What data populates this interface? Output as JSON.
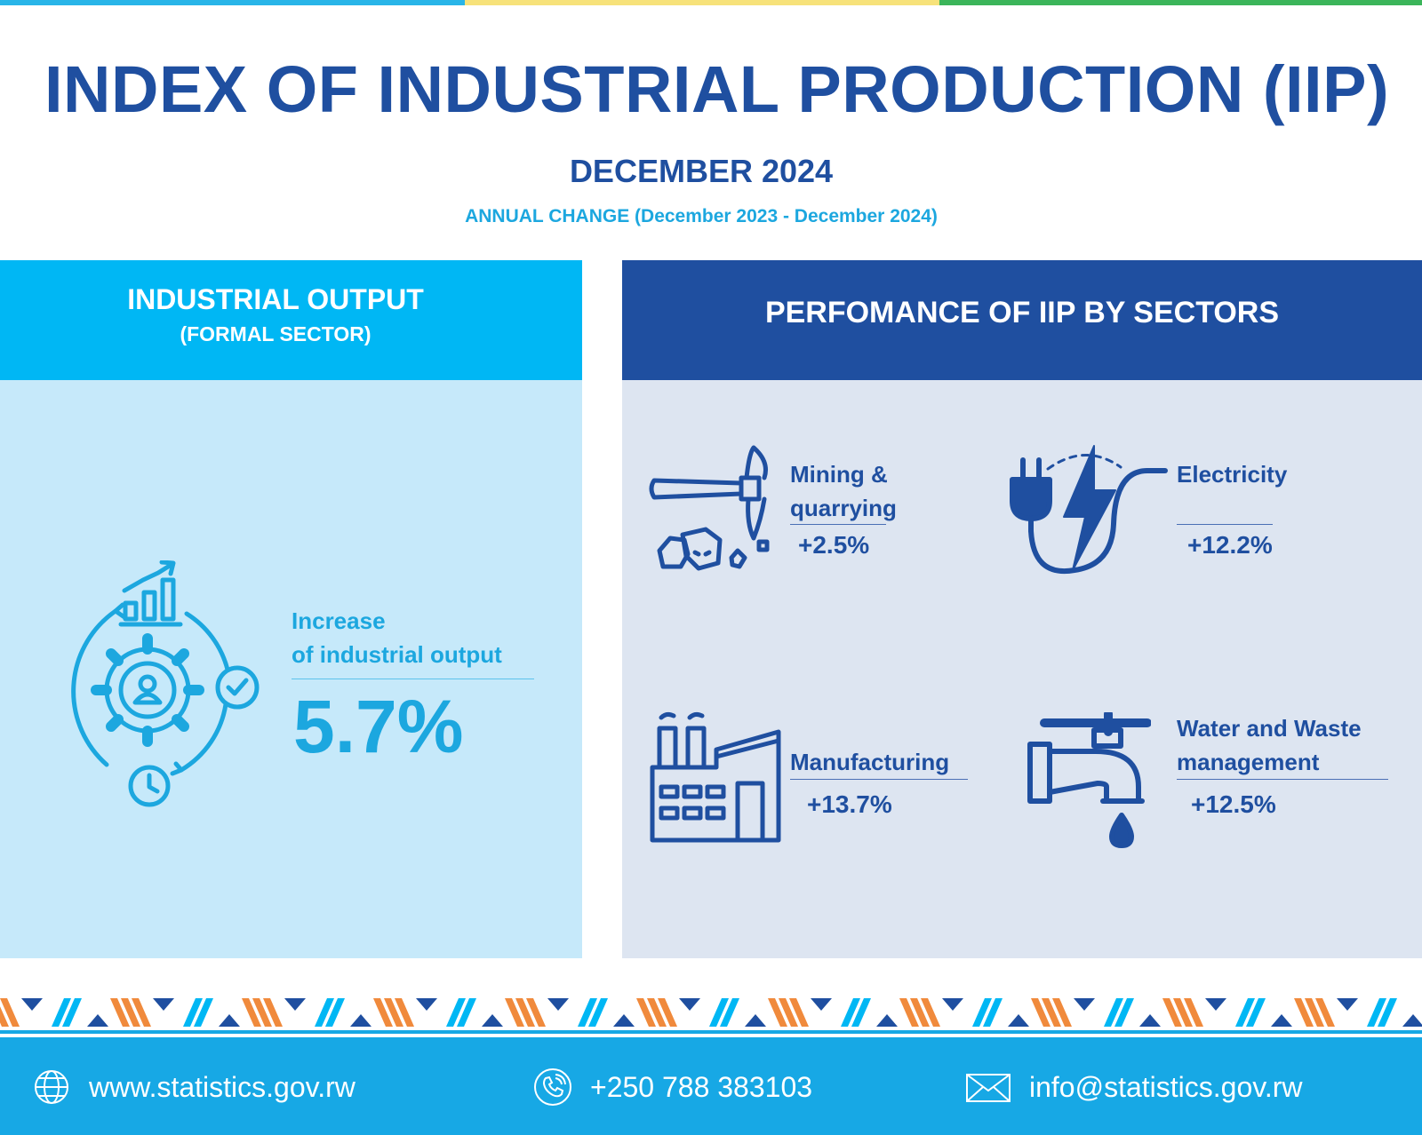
{
  "header": {
    "title": "INDEX OF INDUSTRIAL PRODUCTION (IIP)",
    "period": "DECEMBER 2024",
    "annual_change": "ANNUAL CHANGE (December 2023 - December 2024)"
  },
  "industrial_output": {
    "heading": "INDUSTRIAL OUTPUT",
    "subheading": "(FORMAL SECTOR)",
    "label_line1": "Increase",
    "label_line2": "of industrial output",
    "value": "5.7%"
  },
  "sectors": {
    "heading": "PERFOMANCE OF IIP BY SECTORS",
    "mining": {
      "label_line1": "Mining &",
      "label_line2": "quarrying",
      "value": "+2.5%",
      "icon": "pickaxe-icon"
    },
    "electricity": {
      "label": "Electricity",
      "value": "+12.2%",
      "icon": "plug-lightning-icon"
    },
    "manufacturing": {
      "label": "Manufacturing",
      "value": "+13.7%",
      "icon": "factory-icon"
    },
    "water": {
      "label_line1": "Water and Waste",
      "label_line2": "management",
      "value": "+12.5%",
      "icon": "water-tap-icon"
    }
  },
  "footer": {
    "website": "www.statistics.gov.rw",
    "phone": "+250 788 383103",
    "email": "info@statistics.gov.rw"
  },
  "colors": {
    "navy": "#1f4fa0",
    "sky": "#00b7f4",
    "light_sky": "#c6e9fa",
    "light_gray_blue": "#dde5f1",
    "orange": "#f08a3c"
  }
}
